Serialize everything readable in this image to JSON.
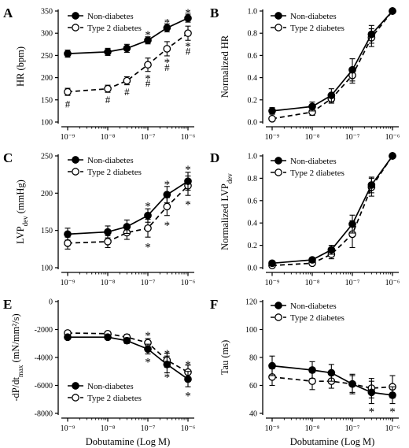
{
  "figure": {
    "xlabel": "Dobutamine (Log M)",
    "x_tick_labels": [
      "10⁻⁹",
      "10⁻⁸",
      "10⁻⁷",
      "10⁻⁶"
    ],
    "x_tick_values": [
      1e-09,
      1e-08,
      1e-07,
      1e-06
    ],
    "colors": {
      "line": "#000000",
      "filled_marker": "#000000",
      "open_marker": "#ffffff"
    }
  },
  "chart_data": [
    {
      "panel": "A",
      "type": "line",
      "x_scale": "log",
      "x": [
        1e-09,
        1e-08,
        3e-08,
        1e-07,
        3e-07,
        1e-06
      ],
      "ylabel": "HR (bpm)",
      "ylim": [
        100,
        350
      ],
      "yticks": [
        100,
        150,
        200,
        250,
        300,
        350
      ],
      "legend_position": "top-left",
      "series": [
        {
          "name": "Non-diabetes",
          "marker": "filled",
          "line": "solid",
          "values": [
            254,
            258,
            266,
            284,
            312,
            334
          ],
          "errors": [
            8,
            8,
            9,
            8,
            9,
            9
          ]
        },
        {
          "name": "Type 2 diabetes",
          "marker": "open",
          "line": "dashed",
          "values": [
            168,
            175,
            193,
            229,
            265,
            300
          ],
          "errors": [
            8,
            8,
            9,
            15,
            16,
            16
          ]
        }
      ],
      "annotations": [
        {
          "text": "*",
          "x": 1e-07,
          "y": 302
        },
        {
          "text": "*",
          "x": 3e-07,
          "y": 330
        },
        {
          "text": "*",
          "x": 1e-06,
          "y": 352
        },
        {
          "text": "#",
          "x": 1e-09,
          "y": 140
        },
        {
          "text": "#",
          "x": 1e-08,
          "y": 150
        },
        {
          "text": "#",
          "x": 3e-08,
          "y": 167
        },
        {
          "text": "*",
          "x": 1e-07,
          "y": 204
        },
        {
          "text": "#",
          "x": 1e-07,
          "y": 187
        },
        {
          "text": "*",
          "x": 3e-07,
          "y": 240
        },
        {
          "text": "#",
          "x": 3e-07,
          "y": 222
        },
        {
          "text": "*",
          "x": 1e-06,
          "y": 276
        },
        {
          "text": "#",
          "x": 1e-06,
          "y": 259
        }
      ]
    },
    {
      "panel": "B",
      "type": "line",
      "x_scale": "log",
      "x": [
        1e-09,
        1e-08,
        3e-08,
        1e-07,
        3e-07,
        1e-06
      ],
      "ylabel": "Normalized HR",
      "ylim": [
        0,
        1
      ],
      "yticks": [
        0.0,
        0.2,
        0.4,
        0.6,
        0.8,
        1.0
      ],
      "legend_position": "top-left",
      "series": [
        {
          "name": "Non-diabetes",
          "marker": "filled",
          "line": "solid",
          "values": [
            0.1,
            0.14,
            0.24,
            0.47,
            0.79,
            1.0
          ],
          "errors": [
            0.03,
            0.04,
            0.06,
            0.1,
            0.08,
            0.0
          ]
        },
        {
          "name": "Type 2 diabetes",
          "marker": "open",
          "line": "dashed",
          "values": [
            0.03,
            0.09,
            0.21,
            0.42,
            0.76,
            1.0
          ],
          "errors": [
            0.02,
            0.03,
            0.04,
            0.07,
            0.08,
            0.0
          ]
        }
      ],
      "annotations": []
    },
    {
      "panel": "C",
      "type": "line",
      "x_scale": "log",
      "x": [
        1e-09,
        1e-08,
        3e-08,
        1e-07,
        3e-07,
        1e-06
      ],
      "ylabel": "LVP",
      "ylabel_subscript": "dev",
      "ylabel_unit": "(mmHg)",
      "ylim": [
        100,
        250
      ],
      "yticks": [
        100,
        150,
        200,
        250
      ],
      "legend_position": "top-left",
      "series": [
        {
          "name": "Non-diabetes",
          "marker": "filled",
          "line": "solid",
          "values": [
            145,
            148,
            155,
            170,
            198,
            216
          ],
          "errors": [
            8,
            8,
            9,
            9,
            11,
            12
          ]
        },
        {
          "name": "Type 2 diabetes",
          "marker": "open",
          "line": "dashed",
          "values": [
            133,
            135,
            147,
            153,
            182,
            210
          ],
          "errors": [
            8,
            8,
            9,
            12,
            12,
            13
          ]
        }
      ],
      "annotations": [
        {
          "text": "*",
          "x": 1e-07,
          "y": 186
        },
        {
          "text": "*",
          "x": 3e-07,
          "y": 215
        },
        {
          "text": "*",
          "x": 1e-06,
          "y": 235
        },
        {
          "text": "*",
          "x": 1e-07,
          "y": 131
        },
        {
          "text": "*",
          "x": 3e-07,
          "y": 160
        },
        {
          "text": "*",
          "x": 1e-06,
          "y": 188
        }
      ]
    },
    {
      "panel": "D",
      "type": "line",
      "x_scale": "log",
      "x": [
        1e-09,
        1e-08,
        3e-08,
        1e-07,
        3e-07,
        1e-06
      ],
      "ylabel": "Normalized LVP",
      "ylabel_subscript": "dev",
      "ylim": [
        0,
        1
      ],
      "yticks": [
        0.0,
        0.2,
        0.4,
        0.6,
        0.8,
        1.0
      ],
      "legend_position": "top-left",
      "series": [
        {
          "name": "Non-diabetes",
          "marker": "filled",
          "line": "solid",
          "values": [
            0.04,
            0.07,
            0.16,
            0.39,
            0.74,
            1.0
          ],
          "errors": [
            0.02,
            0.02,
            0.04,
            0.08,
            0.07,
            0.0
          ]
        },
        {
          "name": "Type 2 diabetes",
          "marker": "open",
          "line": "dashed",
          "values": [
            0.02,
            0.04,
            0.12,
            0.3,
            0.72,
            1.0
          ],
          "errors": [
            0.02,
            0.02,
            0.04,
            0.12,
            0.08,
            0.0
          ]
        }
      ],
      "annotations": []
    },
    {
      "panel": "E",
      "type": "line",
      "x_scale": "log",
      "x": [
        1e-09,
        1e-08,
        3e-08,
        1e-07,
        3e-07,
        1e-06
      ],
      "ylabel": "-dP/dt",
      "ylabel_subscript": "max",
      "ylabel_unit": "(mN/mm²/s)",
      "ylim": [
        -8000,
        0
      ],
      "yticks": [
        -8000,
        -6000,
        -4000,
        -2000,
        0
      ],
      "legend_position": "bottom-left",
      "series": [
        {
          "name": "Non-diabetes",
          "marker": "filled",
          "line": "solid",
          "values": [
            -2550,
            -2550,
            -2800,
            -3400,
            -4500,
            -5550
          ],
          "errors": [
            150,
            150,
            200,
            350,
            600,
            550
          ]
        },
        {
          "name": "Type 2 diabetes",
          "marker": "open",
          "line": "dashed",
          "values": [
            -2250,
            -2300,
            -2550,
            -2950,
            -4200,
            -5050
          ],
          "errors": [
            150,
            150,
            200,
            300,
            500,
            500
          ]
        }
      ],
      "annotations": [
        {
          "text": "*",
          "x": 1e-07,
          "y": -2250
        },
        {
          "text": "*",
          "x": 3e-07,
          "y": -3550
        },
        {
          "text": "*",
          "x": 1e-06,
          "y": -4350
        },
        {
          "text": "*",
          "x": 1e-07,
          "y": -4150
        },
        {
          "text": "*",
          "x": 3e-07,
          "y": -5250
        },
        {
          "text": "*",
          "x": 1e-06,
          "y": -6550
        }
      ]
    },
    {
      "panel": "F",
      "type": "line",
      "x_scale": "log",
      "x": [
        1e-09,
        1e-08,
        3e-08,
        1e-07,
        3e-07,
        1e-06
      ],
      "ylabel": "Tau (ms)",
      "ylim": [
        40,
        120
      ],
      "yticks": [
        40,
        60,
        80,
        100,
        120
      ],
      "legend_position": "top-left",
      "series": [
        {
          "name": "Non-diabetes",
          "marker": "filled",
          "line": "solid",
          "values": [
            74,
            71,
            69,
            61,
            55,
            53
          ],
          "errors": [
            7,
            6,
            6,
            7,
            8,
            6
          ]
        },
        {
          "name": "Type 2 diabetes",
          "marker": "open",
          "line": "dashed",
          "values": [
            66,
            63,
            63,
            61,
            58,
            59
          ],
          "errors": [
            6,
            6,
            5,
            6,
            7,
            8
          ]
        }
      ],
      "annotations": [
        {
          "text": "*",
          "x": 3e-07,
          "y": 43
        },
        {
          "text": "*",
          "x": 1e-06,
          "y": 43
        }
      ]
    }
  ]
}
